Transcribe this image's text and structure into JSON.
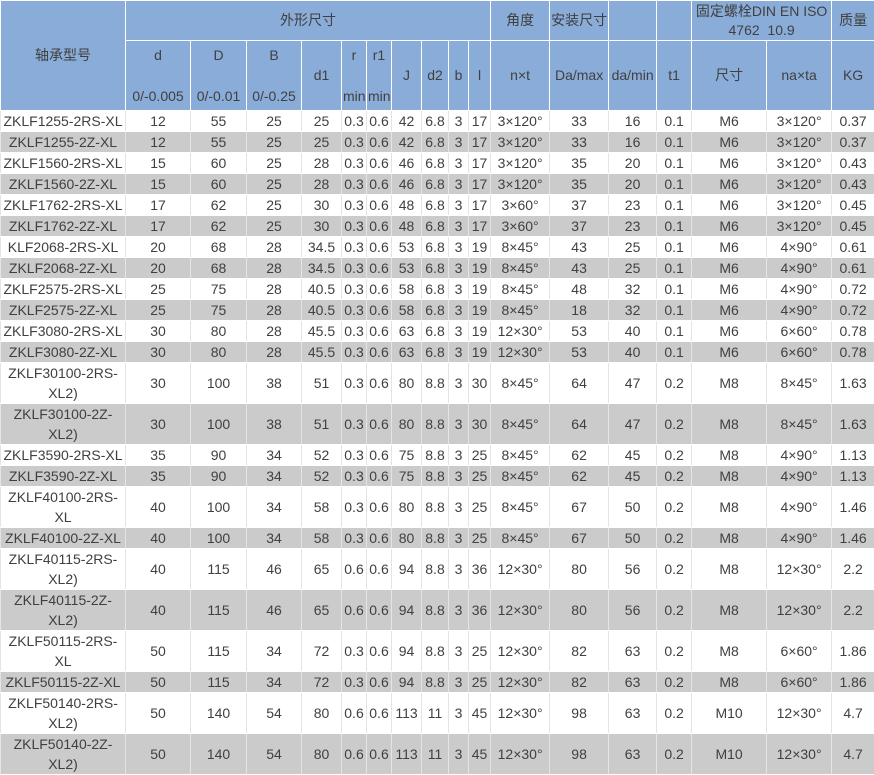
{
  "colors": {
    "header_bg": "#8aacd9",
    "row_bg": "#ffffff",
    "row_alt_bg": "#cbcbcb",
    "text": "#404040"
  },
  "table": {
    "header": {
      "model": "轴承型号",
      "dims_group": "外形尺寸",
      "angle_group": "角度",
      "install_group": "安装尺寸",
      "bolt_group_line1": "固定螺栓DIN EN ISO",
      "bolt_group_line2": "4762  10.9",
      "mass_group": "质量",
      "cols": [
        {
          "top": "d",
          "bottom": "0/-0.005"
        },
        {
          "top": "D",
          "bottom": "0/-0.01"
        },
        {
          "top": "B",
          "bottom": "0/-0.25"
        },
        {
          "top": "d1",
          "bottom": ""
        },
        {
          "top": "r",
          "bottom": "min"
        },
        {
          "top": "r1",
          "bottom": "min"
        },
        {
          "top": "J",
          "bottom": ""
        },
        {
          "top": "d2",
          "bottom": ""
        },
        {
          "top": "b",
          "bottom": ""
        },
        {
          "top": "l",
          "bottom": ""
        },
        {
          "top": "n×t",
          "bottom": ""
        },
        {
          "top": "Da/max",
          "bottom": ""
        },
        {
          "top": "da/min",
          "bottom": ""
        },
        {
          "top": "t1",
          "bottom": ""
        },
        {
          "top": "尺寸",
          "bottom": ""
        },
        {
          "top": "na×ta",
          "bottom": ""
        },
        {
          "top": "KG",
          "bottom": ""
        }
      ]
    },
    "rows": [
      [
        "ZKLF1255-2RS-XL",
        "12",
        "55",
        "25",
        "25",
        "0.3",
        "0.6",
        "42",
        "6.8",
        "3",
        "17",
        "3×120°",
        "33",
        "16",
        "0.1",
        "M6",
        "3×120°",
        "0.37"
      ],
      [
        "ZKLF1255-2Z-XL",
        "12",
        "55",
        "25",
        "25",
        "0.3",
        "0.6",
        "42",
        "6.8",
        "3",
        "17",
        "3×120°",
        "33",
        "16",
        "0.1",
        "M6",
        "3×120°",
        "0.37"
      ],
      [
        "ZKLF1560-2RS-XL",
        "15",
        "60",
        "25",
        "28",
        "0.3",
        "0.6",
        "46",
        "6.8",
        "3",
        "17",
        "3×120°",
        "35",
        "20",
        "0.1",
        "M6",
        "3×120°",
        "0.43"
      ],
      [
        "ZKLF1560-2Z-XL",
        "15",
        "60",
        "25",
        "28",
        "0.3",
        "0.6",
        "46",
        "6.8",
        "3",
        "17",
        "3×120°",
        "35",
        "20",
        "0.1",
        "M6",
        "3×120°",
        "0.43"
      ],
      [
        "ZKLF1762-2RS-XL",
        "17",
        "62",
        "25",
        "30",
        "0.3",
        "0.6",
        "48",
        "6.8",
        "3",
        "17",
        "3×60°",
        "37",
        "23",
        "0.1",
        "M6",
        "3×120°",
        "0.45"
      ],
      [
        "ZKLF1762-2Z-XL",
        "17",
        "62",
        "25",
        "30",
        "0.3",
        "0.6",
        "48",
        "6.8",
        "3",
        "17",
        "3×60°",
        "37",
        "23",
        "0.1",
        "M6",
        "3×120°",
        "0.45"
      ],
      [
        "KLF2068-2RS-XL",
        "20",
        "68",
        "28",
        "34.5",
        "0.3",
        "0.6",
        "53",
        "6.8",
        "3",
        "19",
        "8×45°",
        "43",
        "25",
        "0.1",
        "M6",
        "4×90°",
        "0.61"
      ],
      [
        "ZKLF2068-2Z-XL",
        "20",
        "68",
        "28",
        "34.5",
        "0.3",
        "0.6",
        "53",
        "6.8",
        "3",
        "19",
        "8×45°",
        "43",
        "25",
        "0.1",
        "M6",
        "4×90°",
        "0.61"
      ],
      [
        "ZKLF2575-2RS-XL",
        "25",
        "75",
        "28",
        "40.5",
        "0.3",
        "0.6",
        "58",
        "6.8",
        "3",
        "19",
        "8×45°",
        "48",
        "32",
        "0.1",
        "M6",
        "4×90°",
        "0.72"
      ],
      [
        "ZKLF2575-2Z-XL",
        "25",
        "75",
        "28",
        "40.5",
        "0.3",
        "0.6",
        "58",
        "6.8",
        "3",
        "19",
        "8×45°",
        "18",
        "32",
        "0.1",
        "M6",
        "4×90°",
        "0.72"
      ],
      [
        "ZKLF3080-2RS-XL",
        "30",
        "80",
        "28",
        "45.5",
        "0.3",
        "0.6",
        "63",
        "6.8",
        "3",
        "19",
        "12×30°",
        "53",
        "40",
        "0.1",
        "M6",
        "6×60°",
        "0.78"
      ],
      [
        "ZKLF3080-2Z-XL",
        "30",
        "80",
        "28",
        "45.5",
        "0.3",
        "0.6",
        "63",
        "6.8",
        "3",
        "19",
        "12×30°",
        "53",
        "40",
        "0.1",
        "M6",
        "6×60°",
        "0.78"
      ],
      [
        "ZKLF30100-2RS-XL2)",
        "30",
        "100",
        "38",
        "51",
        "0.3",
        "0.6",
        "80",
        "8.8",
        "3",
        "30",
        "8×45°",
        "64",
        "47",
        "0.2",
        "M8",
        "8×45°",
        "1.63"
      ],
      [
        "ZKLF30100-2Z-XL2)",
        "30",
        "100",
        "38",
        "51",
        "0.3",
        "0.6",
        "80",
        "8.8",
        "3",
        "30",
        "8×45°",
        "64",
        "47",
        "0.2",
        "M8",
        "8×45°",
        "1.63"
      ],
      [
        "ZKLF3590-2RS-XL",
        "35",
        "90",
        "34",
        "52",
        "0.3",
        "0.6",
        "75",
        "8.8",
        "3",
        "25",
        "8×45°",
        "62",
        "45",
        "0.2",
        "M8",
        "4×90°",
        "1.13"
      ],
      [
        "ZKLF3590-2Z-XL",
        "35",
        "90",
        "34",
        "52",
        "0.3",
        "0.6",
        "75",
        "8.8",
        "3",
        "25",
        "8×45°",
        "62",
        "45",
        "0.2",
        "M8",
        "4×90°",
        "1.13"
      ],
      [
        "ZKLF40100-2RS-XL",
        "40",
        "100",
        "34",
        "58",
        "0.3",
        "0.6",
        "80",
        "8.8",
        "3",
        "25",
        "8×45°",
        "67",
        "50",
        "0.2",
        "M8",
        "4×90°",
        "1.46"
      ],
      [
        "ZKLF40100-2Z-XL",
        "40",
        "100",
        "34",
        "58",
        "0.3",
        "0.6",
        "80",
        "8.8",
        "3",
        "25",
        "8×45°",
        "67",
        "50",
        "0.2",
        "M8",
        "4×90°",
        "1.46"
      ],
      [
        "ZKLF40115-2RS-XL2)",
        "40",
        "115",
        "46",
        "65",
        "0.6",
        "0.6",
        "94",
        "8.8",
        "3",
        "36",
        "12×30°",
        "80",
        "56",
        "0.2",
        "M8",
        "12×30°",
        "2.2"
      ],
      [
        "ZKLF40115-2Z-XL2)",
        "40",
        "115",
        "46",
        "65",
        "0.6",
        "0.6",
        "94",
        "8.8",
        "3",
        "36",
        "12×30°",
        "80",
        "56",
        "0.2",
        "M8",
        "12×30°",
        "2.2"
      ],
      [
        "ZKLF50115-2RS-XL",
        "50",
        "115",
        "34",
        "72",
        "0.3",
        "0.6",
        "94",
        "8.8",
        "3",
        "25",
        "12×30°",
        "82",
        "63",
        "0.2",
        "M8",
        "6×60°",
        "1.86"
      ],
      [
        "ZKLF50115-2Z-XL",
        "50",
        "115",
        "34",
        "72",
        "0.3",
        "0.6",
        "94",
        "8.8",
        "3",
        "25",
        "12×30°",
        "82",
        "63",
        "0.2",
        "M8",
        "6×60°",
        "1.86"
      ],
      [
        "ZKLF50140-2RS-XL2)",
        "50",
        "140",
        "54",
        "80",
        "0.6",
        "0.6",
        "113",
        "11",
        "3",
        "45",
        "12×30°",
        "98",
        "63",
        "0.2",
        "M10",
        "12×30°",
        "4.7"
      ],
      [
        "ZKLF50140-2Z-XL2)",
        "50",
        "140",
        "54",
        "80",
        "0.6",
        "0.6",
        "113",
        "11",
        "3",
        "45",
        "12×30°",
        "98",
        "63",
        "0.2",
        "M10",
        "12×30°",
        "4.7"
      ]
    ]
  }
}
